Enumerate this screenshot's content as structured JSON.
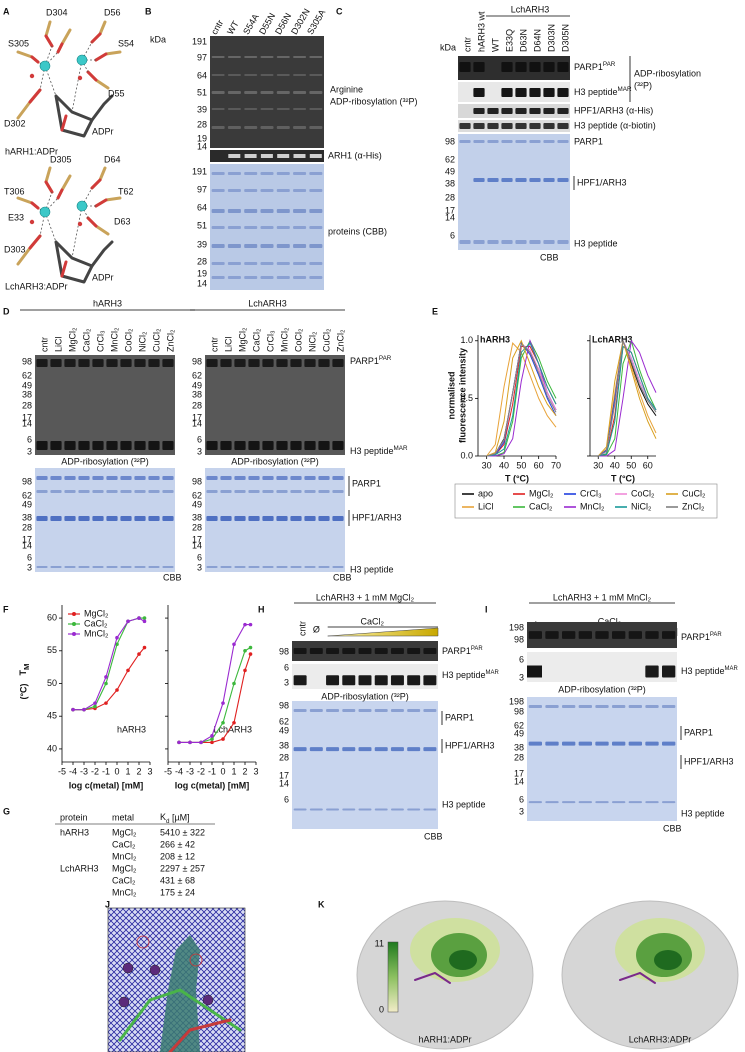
{
  "panel_letters": [
    "A",
    "B",
    "C",
    "D",
    "E",
    "F",
    "G",
    "H",
    "I",
    "J",
    "K"
  ],
  "A": {
    "top": {
      "residues": [
        "D304",
        "D56",
        "S305",
        "S54",
        "D55",
        "D302"
      ],
      "ligand": "ADPr",
      "caption": "hARH1:ADPr"
    },
    "bottom": {
      "residues": [
        "D305",
        "D64",
        "T306",
        "T62",
        "E33",
        "D63",
        "D303"
      ],
      "ligand": "ADPr",
      "caption": "LchARH3:ADPr"
    }
  },
  "B": {
    "kda": "kDa",
    "lanes": [
      "cntr",
      "WT",
      "S54A",
      "D55N",
      "D56N",
      "D302N",
      "S305A"
    ],
    "top_markers": [
      191,
      97,
      64,
      51,
      39,
      28,
      19,
      14
    ],
    "bottom_markers": [
      191,
      97,
      64,
      51,
      39,
      28,
      19,
      14
    ],
    "labels": {
      "top_line1": "Arginine",
      "top_line2": "ADP-ribosylation (³²P)",
      "middle": "ARH1 (α-His)",
      "bottom": "proteins (CBB)"
    }
  },
  "C": {
    "kda": "kDa",
    "group": "LchARH3",
    "lanes": [
      "cntr",
      "hARH3 wt",
      "WT",
      "E33Q",
      "D63N",
      "D64N",
      "D303N",
      "D305N"
    ],
    "markers": [
      98,
      62,
      49,
      38,
      28,
      17,
      14,
      6
    ],
    "labels": {
      "parp1_par": {
        "text": "PARP1",
        "sup": "PAR"
      },
      "h3_mar": {
        "text": "H3 peptide",
        "sup": "MAR"
      },
      "bracket_line1": "ADP-ribosylation",
      "bracket_line2": "(³²P)",
      "his": "HPF1/ARH3 (α-His)",
      "biotin": "H3 peptide (α-biotin)",
      "parp1": "PARP1",
      "hpf1": "HPF1/ARH3",
      "h3": "H3 peptide",
      "cbb": "CBB"
    }
  },
  "D": {
    "gels": [
      {
        "group": "hARH3",
        "lanes": [
          "cntr",
          "LiCl",
          "MgCl₂",
          "CaCl₂",
          "CrCl₃",
          "MnCl₂",
          "CoCl₂",
          "NiCl₂",
          "CuCl₂",
          "ZnCl₂"
        ],
        "top_markers": [
          98,
          62,
          49,
          38,
          28,
          17,
          14,
          6,
          3
        ],
        "bottom_markers": [
          98,
          62,
          49,
          38,
          28,
          17,
          14,
          6,
          3
        ],
        "radio_caption": "ADP-ribosylation (³²P)",
        "cbb": "CBB"
      },
      {
        "group": "LchARH3",
        "lanes": [
          "cntr",
          "LiCl",
          "MgCl₂",
          "CaCl₂",
          "CrCl₃",
          "MnCl₂",
          "CoCl₂",
          "NiCl₂",
          "CuCl₂",
          "ZnCl₂"
        ],
        "top_markers": [
          98,
          62,
          49,
          38,
          28,
          17,
          14,
          6,
          3
        ],
        "bottom_markers": [
          98,
          62,
          49,
          38,
          28,
          17,
          14,
          6,
          3
        ],
        "radio_caption": "ADP-ribosylation (³²P)",
        "cbb": "CBB"
      }
    ],
    "labels": {
      "parp1_par": {
        "text": "PARP1",
        "sup": "PAR"
      },
      "h3_mar": {
        "text": "H3 peptide",
        "sup": "MAR"
      },
      "parp1": "PARP1",
      "hpf1": "HPF1/ARH3",
      "h3": "H3 peptide"
    }
  },
  "G": {
    "header": {
      "protein": "protein",
      "metal": "metal",
      "kd": {
        "text": "K",
        "sub": "d"
      },
      "unit": "[µM]"
    },
    "groups": [
      {
        "protein": "hARH3",
        "rows": [
          [
            "MgCl₂",
            "5410 ± 322"
          ],
          [
            "CaCl₂",
            "266 ± 42"
          ],
          [
            "MnCl₂",
            "208 ± 12"
          ]
        ]
      },
      {
        "protein": "LchARH3",
        "rows": [
          [
            "MgCl₂",
            "2297 ± 257"
          ],
          [
            "CaCl₂",
            "431 ± 68"
          ],
          [
            "MnCl₂",
            "175 ± 24"
          ]
        ]
      }
    ]
  },
  "H": {
    "title": "LchARH3 + 1 mM MgCl₂",
    "lanes": [
      "cntr",
      "Ø"
    ],
    "gradient": "CaCl₂",
    "top_markers": [
      98
    ],
    "h3_markers": [
      6,
      3
    ],
    "bottom_markers": [
      98,
      62,
      49,
      38,
      28,
      17,
      14,
      6
    ],
    "radio_caption": "ADP-ribosylation (³²P)",
    "labels": {
      "parp1_par": {
        "text": "PARP1",
        "sup": "PAR"
      },
      "h3_mar": {
        "text": "H3 peptide",
        "sup": "MAR"
      },
      "parp1": "PARP1",
      "hpf1": "HPF1/ARH3",
      "h3": "H3 peptide",
      "cbb": "CBB"
    }
  },
  "I": {
    "title": "LchARH3 + 1 mM MnCl₂",
    "lanes": [
      "cntr",
      "Ø"
    ],
    "gradient": "CaCl₂",
    "top_markers": [
      198,
      98
    ],
    "h3_markers": [
      6,
      3
    ],
    "bottom_markers": [
      198,
      98,
      62,
      49,
      38,
      28,
      17,
      14,
      6,
      3
    ],
    "radio_caption": "ADP-ribosylation (³²P)",
    "labels": {
      "parp1_par": {
        "text": "PARP1",
        "sup": "PAR"
      },
      "h3_mar": {
        "text": "H3 peptide",
        "sup": "MAR"
      },
      "parp1": "PARP1",
      "hpf1": "HPF1/ARH3",
      "h3": "H3 peptide",
      "cbb": "CBB"
    }
  },
  "K": {
    "colorbar_ticks": [
      11,
      0
    ],
    "captions": [
      "hARH1:ADPr",
      "LchARH3:ADPr"
    ]
  },
  "chart_data": [
    {
      "type": "line",
      "ylabel": [
        "normalised",
        "fluorescence intensity"
      ],
      "ylim": [
        0,
        1.05
      ],
      "yticks": [
        {
          "value": 1,
          "label": "1.0"
        },
        0.5,
        {
          "value": 0,
          "label": "0.0"
        }
      ],
      "legend": [
        {
          "name": "apo",
          "color": "#111111"
        },
        {
          "name": "LiCl",
          "color": "#e8a33a"
        },
        {
          "name": "MgCl₂",
          "color": "#e02020"
        },
        {
          "name": "CaCl₂",
          "color": "#3cb83c"
        },
        {
          "name": "CrCl₃",
          "color": "#2040e0"
        },
        {
          "name": "MnCl₂",
          "color": "#9a2ad0"
        },
        {
          "name": "CoCl₂",
          "color": "#f08ad8"
        },
        {
          "name": "NiCl₂",
          "color": "#1a9a9a"
        },
        {
          "name": "CuCl₂",
          "color": "#d8a020"
        },
        {
          "name": "ZnCl₂",
          "color": "#808080"
        }
      ],
      "subplots": [
        {
          "title": "hARH3",
          "xlabel": "T (°C)",
          "xlim": [
            25,
            70
          ],
          "xticks": [
            30,
            40,
            50,
            60,
            70
          ],
          "x": [
            30,
            35,
            40,
            45,
            50,
            55,
            60,
            65,
            70
          ],
          "series": [
            [
              0,
              0.02,
              0.15,
              0.55,
              0.98,
              0.9,
              0.75,
              0.55,
              0.4
            ],
            [
              0,
              0.1,
              0.6,
              0.98,
              0.9,
              0.7,
              0.5,
              0.35,
              0.25
            ],
            [
              0,
              0.01,
              0.1,
              0.45,
              0.95,
              0.95,
              0.8,
              0.6,
              0.45
            ],
            [
              0,
              0,
              0.03,
              0.3,
              0.85,
              1.0,
              0.85,
              0.65,
              0.5
            ],
            [
              0,
              0.01,
              0.12,
              0.55,
              0.98,
              0.88,
              0.7,
              0.5,
              0.35
            ],
            [
              0,
              0,
              0.02,
              0.15,
              0.65,
              1.0,
              0.8,
              0.55,
              0.4
            ],
            [
              0,
              0.02,
              0.14,
              0.55,
              0.97,
              0.92,
              0.75,
              0.55,
              0.4
            ],
            [
              0,
              0.01,
              0.06,
              0.35,
              0.9,
              0.98,
              0.8,
              0.6,
              0.45
            ],
            [
              0,
              0.03,
              0.3,
              0.85,
              1.0,
              0.8,
              0.6,
              0.45,
              0.35
            ],
            [
              0,
              0.02,
              0.14,
              0.55,
              0.97,
              0.9,
              0.72,
              0.52,
              0.38
            ]
          ]
        },
        {
          "title": "LchARH3",
          "xlabel": "T (°C)",
          "xlim": [
            25,
            65
          ],
          "xticks": [
            30,
            40,
            50,
            60
          ],
          "x": [
            30,
            35,
            40,
            45,
            50,
            55,
            60,
            65
          ],
          "series": [
            [
              0,
              0.05,
              0.5,
              1.0,
              0.8,
              0.6,
              0.45,
              0.35
            ],
            [
              0,
              0.06,
              0.55,
              1.0,
              0.78,
              0.55,
              0.35,
              0.2
            ],
            [
              0,
              0.02,
              0.35,
              0.95,
              0.9,
              0.7,
              0.5,
              0.4
            ],
            [
              0,
              0.01,
              0.15,
              0.8,
              1.0,
              0.75,
              0.55,
              0.4
            ],
            [
              0,
              0.05,
              0.5,
              1.0,
              0.85,
              0.65,
              0.5,
              0.4
            ],
            [
              0,
              0,
              0.05,
              0.5,
              1.0,
              0.9,
              0.7,
              0.55
            ],
            [
              0,
              0.04,
              0.45,
              1.0,
              0.85,
              0.65,
              0.5,
              0.4
            ],
            [
              0,
              0.02,
              0.3,
              0.95,
              0.9,
              0.7,
              0.5,
              0.4
            ],
            [
              0,
              0.08,
              0.65,
              1.0,
              0.75,
              0.5,
              0.3,
              0.15
            ],
            [
              0,
              0.04,
              0.45,
              1.0,
              0.82,
              0.62,
              0.48,
              0.38
            ]
          ]
        }
      ]
    },
    {
      "type": "scatter",
      "ylabel": {
        "text": "T",
        "sub": "M"
      },
      "ylabel_unit": "(°C)",
      "ylim": [
        38,
        62
      ],
      "yticks": [
        40,
        45,
        50,
        55,
        60
      ],
      "legend": [
        {
          "name": "MgCl₂",
          "color": "#e02020"
        },
        {
          "name": "CaCl₂",
          "color": "#3cb83c"
        },
        {
          "name": "MnCl₂",
          "color": "#9a2ad0"
        }
      ],
      "subplots": [
        {
          "annotation": "hARH3",
          "xlabel": "log c(metal) [mM]",
          "xlim": [
            -5,
            3
          ],
          "xticks": [
            -5,
            -4,
            -3,
            -2,
            -1,
            0,
            1,
            2,
            3
          ],
          "x": [
            -4,
            -3,
            -2,
            -1,
            0,
            1,
            2,
            2.5
          ],
          "series": [
            [
              46,
              46,
              46.2,
              47,
              49,
              52,
              54.5,
              55.5
            ],
            [
              46,
              46,
              46.5,
              50,
              56,
              59.5,
              60,
              60
            ],
            [
              46,
              46,
              47,
              51,
              57,
              59.5,
              60,
              59.5
            ]
          ]
        },
        {
          "annotation": "LchARH3",
          "xlabel": "log c(metal) [mM]",
          "xlim": [
            -5,
            3
          ],
          "xticks": [
            -5,
            -4,
            -3,
            -2,
            -1,
            0,
            1,
            2,
            3
          ],
          "x": [
            -4,
            -3,
            -2,
            -1,
            0,
            1,
            2,
            2.5
          ],
          "series": [
            [
              41,
              41,
              41,
              41,
              41.5,
              44,
              52,
              54.5
            ],
            [
              41,
              41,
              41,
              41.5,
              44,
              50,
              55,
              55.5
            ],
            [
              41,
              41,
              41,
              42,
              47,
              56,
              59,
              59
            ]
          ]
        }
      ]
    }
  ]
}
